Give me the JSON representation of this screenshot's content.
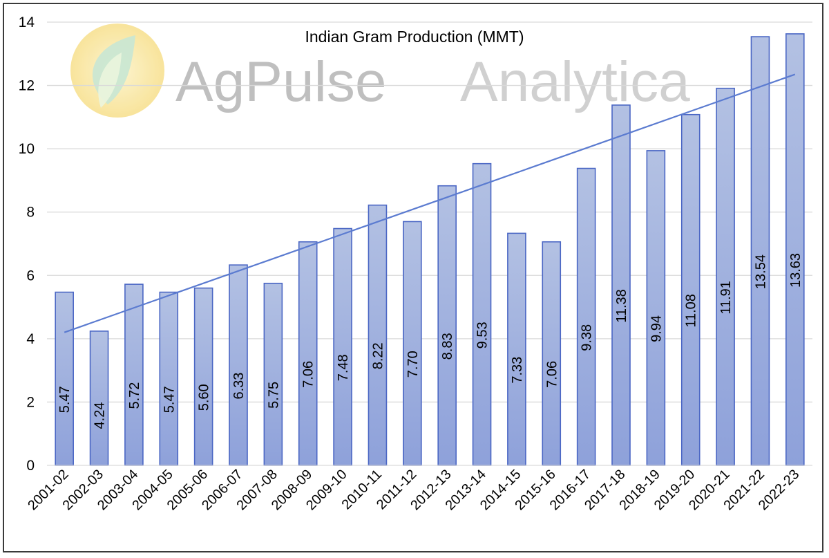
{
  "watermark": {
    "word1": "AgPulse",
    "word2": "Analytica",
    "logo_icon": "leaf-in-sun-icon",
    "color_text": "#b5b5b5",
    "color_sun": "#fbe9a0",
    "color_leaf": "#a9d8c0"
  },
  "chart_data": {
    "type": "bar",
    "title": "Indian Gram Production  (MMT)",
    "xlabel": "",
    "ylabel": "",
    "ylim": [
      0,
      14
    ],
    "yticks": [
      0,
      2,
      4,
      6,
      8,
      10,
      12,
      14
    ],
    "grid": true,
    "categories": [
      "2001-02",
      "2002-03",
      "2003-04",
      "2004-05",
      "2005-06",
      "2006-07",
      "2007-08",
      "2008-09",
      "2009-10",
      "2010-11",
      "2011-12",
      "2012-13",
      "2013-14",
      "2014-15",
      "2015-16",
      "2016-17",
      "2017-18",
      "2018-19",
      "2019-20",
      "2020-21",
      "2021-22",
      "2022-23"
    ],
    "values": [
      5.47,
      4.24,
      5.72,
      5.47,
      5.6,
      6.33,
      5.75,
      7.06,
      7.48,
      8.22,
      7.7,
      8.83,
      9.53,
      7.33,
      7.06,
      9.38,
      11.38,
      9.94,
      11.08,
      11.91,
      13.54,
      13.63
    ],
    "data_labels": [
      "5.47",
      "4.24",
      "5.72",
      "5.47",
      "5.60",
      "6.33",
      "5.75",
      "7.06",
      "7.48",
      "8.22",
      "7.70",
      "8.83",
      "9.53",
      "7.33",
      "7.06",
      "9.38",
      "11.38",
      "9.94",
      "11.08",
      "11.91",
      "13.54",
      "13.63"
    ],
    "trendline": {
      "type": "linear",
      "start": 4.2,
      "end": 12.35
    },
    "colors": {
      "bar_top": "#b3c1e3",
      "bar_bottom": "#8ea1da",
      "bar_edge": "#4a66c4",
      "trend": "#5b7bd0"
    }
  }
}
